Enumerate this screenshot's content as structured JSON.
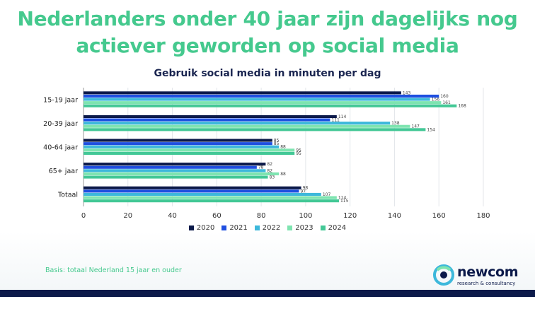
{
  "headline": "Nederlanders onder 40 jaar zijn dagelijks nog actiever geworden op social media",
  "basis_note": "Basis: totaal Nederland 15 jaar en ouder",
  "logo": {
    "name": "newcom",
    "tagline": "research & consultancy"
  },
  "colors": {
    "headline": "#45c98e",
    "title": "#1a2550",
    "series": [
      "#0c1a4a",
      "#1f4fe0",
      "#3db8db",
      "#7ee4b0",
      "#43c896"
    ]
  },
  "chart_data": {
    "type": "bar",
    "orientation": "horizontal",
    "title": "Gebruik social media in minuten per dag",
    "categories": [
      "15-19 jaar",
      "20-39 jaar",
      "40-64 jaar",
      "65+ jaar",
      "Totaal"
    ],
    "series": [
      {
        "name": "2020",
        "values": [
          143,
          114,
          85,
          82,
          98
        ]
      },
      {
        "name": "2021",
        "values": [
          160,
          111,
          85,
          78,
          97
        ]
      },
      {
        "name": "2022",
        "values": [
          156,
          138,
          88,
          82,
          107
        ]
      },
      {
        "name": "2023",
        "values": [
          161,
          147,
          95,
          88,
          114
        ]
      },
      {
        "name": "2024",
        "values": [
          168,
          154,
          95,
          83,
          115
        ]
      }
    ],
    "xlim": [
      0,
      180
    ],
    "xticks": [
      0,
      20,
      40,
      60,
      80,
      100,
      120,
      140,
      160,
      180
    ],
    "grid": true,
    "legend_position": "bottom"
  }
}
